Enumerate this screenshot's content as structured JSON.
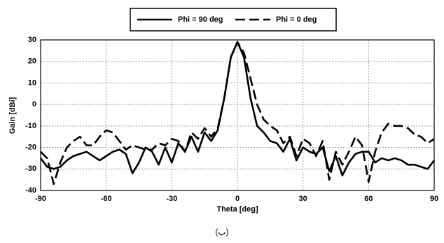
{
  "chart_data": {
    "type": "line",
    "xlabel": "Theta [deg]",
    "ylabel": "Gain [dBi]",
    "caption": "(ب)",
    "x": [
      -90,
      -87,
      -84,
      -81,
      -78,
      -75,
      -72,
      -69,
      -66,
      -63,
      -60,
      -57,
      -54,
      -51,
      -48,
      -45,
      -42,
      -39,
      -36,
      -33,
      -30,
      -27,
      -24,
      -21,
      -18,
      -15,
      -12,
      -9,
      -6,
      -3,
      0,
      3,
      6,
      9,
      12,
      15,
      18,
      21,
      24,
      27,
      30,
      33,
      36,
      39,
      42,
      45,
      48,
      51,
      54,
      57,
      60,
      63,
      66,
      69,
      72,
      75,
      78,
      81,
      84,
      87,
      90
    ],
    "series": [
      {
        "name": "Phi = 90 deg",
        "color": "#000000",
        "dash": "solid",
        "values": [
          -25,
          -29,
          -30,
          -29,
          -26,
          -24,
          -23,
          -22,
          -24,
          -26,
          -24,
          -22,
          -21,
          -23,
          -32,
          -27,
          -20,
          -22,
          -28,
          -20,
          -27,
          -18,
          -22,
          -15,
          -22,
          -13,
          -17,
          -12,
          3,
          22,
          29,
          22,
          3,
          -10,
          -13,
          -17,
          -18,
          -22,
          -16,
          -26,
          -20,
          -22,
          -23,
          -20,
          -31,
          -24,
          -33,
          -27,
          -23,
          -22,
          -22,
          -27,
          -25,
          -26,
          -25,
          -26,
          -28,
          -28,
          -29,
          -30,
          -26
        ]
      },
      {
        "name": "Phi = 0 deg",
        "color": "#000000",
        "dash": "dashed",
        "values": [
          -22,
          -25,
          -37,
          -27,
          -20,
          -17,
          -15,
          -19,
          -19,
          -15,
          -12,
          -13,
          -17,
          -21,
          -19,
          -20,
          -21,
          -21,
          -18,
          -19,
          -16,
          -17,
          -22,
          -13,
          -16,
          -11,
          -15,
          -11,
          3,
          22,
          29,
          24,
          12,
          0,
          -7,
          -10,
          -12,
          -18,
          -15,
          -24,
          -16,
          -18,
          -24,
          -17,
          -35,
          -22,
          -28,
          -22,
          -15,
          -19,
          -36,
          -22,
          -13,
          -9,
          -10,
          -10,
          -11,
          -14,
          -15,
          -18,
          -16
        ]
      }
    ],
    "xlim": [
      -90,
      90
    ],
    "xticks": [
      -90,
      -60,
      -30,
      0,
      30,
      60,
      90
    ],
    "ylim": [
      -40,
      30
    ],
    "yticks": [
      -40,
      -30,
      -20,
      -10,
      0,
      10,
      20,
      30
    ],
    "grid": true,
    "legend": "top"
  }
}
